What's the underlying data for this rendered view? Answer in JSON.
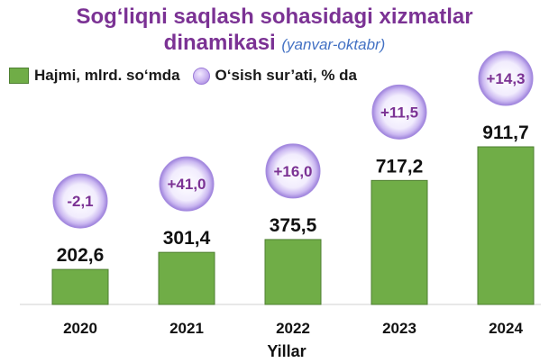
{
  "title_line1": "Sog‘liqni saqlash sohasidagi xizmatlar",
  "title_line2": "dinamikasi",
  "subtitle": "(yanvar-oktabr)",
  "legend": {
    "bar_label": "Hajmi, mlrd. so‘mda",
    "circle_label": "O‘sish sur’ati, % da"
  },
  "colors": {
    "title": "#7b3294",
    "subtitle": "#4472c4",
    "bar": "#70ad47",
    "growth_text": "#7b3294"
  },
  "chart_data": {
    "type": "bar",
    "categories": [
      "2020",
      "2021",
      "2022",
      "2023",
      "2024"
    ],
    "series": [
      {
        "name": "Hajmi, mlrd. so‘mda",
        "values": [
          202.6,
          301.4,
          375.5,
          717.2,
          911.7
        ]
      },
      {
        "name": "O‘sish sur’ati, % da",
        "values": [
          -2.1,
          41.0,
          16.0,
          11.5,
          14.3
        ]
      }
    ],
    "value_labels": [
      "202,6",
      "301,4",
      "375,5",
      "717,2",
      "911,7"
    ],
    "growth_labels": [
      "-2,1",
      "+41,0",
      "+16,0",
      "+11,5",
      "+14,3"
    ],
    "xlabel": "Yillar",
    "ylabel": "",
    "grid": false,
    "legend_position": "top-left"
  }
}
